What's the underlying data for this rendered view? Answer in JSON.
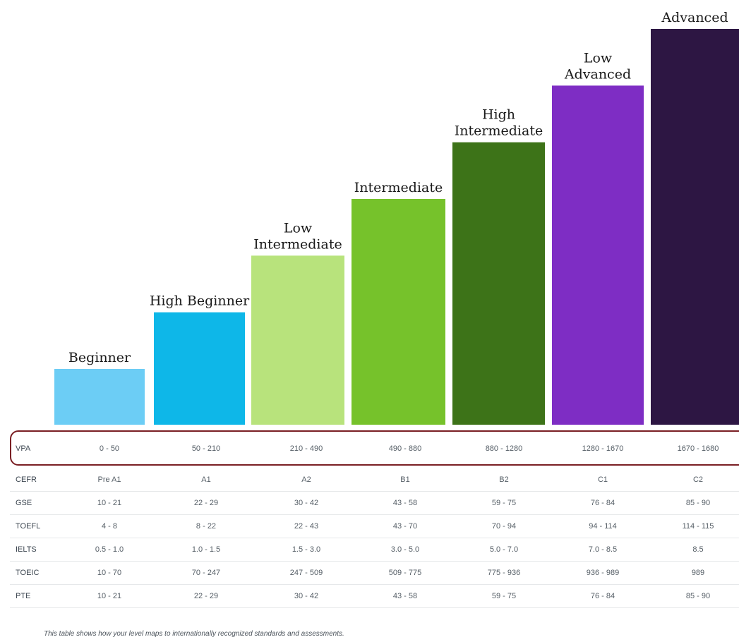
{
  "chart_data": {
    "type": "bar",
    "categories": [
      "Beginner",
      "High Beginner",
      "Low Intermediate",
      "Intermediate",
      "High Intermediate",
      "Low Advanced",
      "Advanced"
    ],
    "category_lines": [
      [
        "Beginner"
      ],
      [
        "High Beginner"
      ],
      [
        "Low",
        "Intermediate"
      ],
      [
        "Intermediate"
      ],
      [
        "High",
        "Intermediate"
      ],
      [
        "Low",
        "Advanced"
      ],
      [
        "Advanced"
      ]
    ],
    "values": [
      1,
      2,
      3,
      4,
      5,
      6,
      7
    ],
    "colors": [
      "#6ccdf5",
      "#0eb7e8",
      "#b8e37c",
      "#76c22b",
      "#3d7318",
      "#7e2dc4",
      "#2d1643"
    ],
    "ylim": [
      0,
      7
    ],
    "grid": false,
    "legend": "none"
  },
  "table": {
    "rows": [
      {
        "label": "VPA",
        "values": [
          "0 - 50",
          "50 - 210",
          "210 - 490",
          "490 - 880",
          "880 - 1280",
          "1280 - 1670",
          "1670 - 1680"
        ]
      },
      {
        "label": "CEFR",
        "values": [
          "Pre A1",
          "A1",
          "A2",
          "B1",
          "B2",
          "C1",
          "C2"
        ]
      },
      {
        "label": "GSE",
        "values": [
          "10 - 21",
          "22 - 29",
          "30 - 42",
          "43 - 58",
          "59 - 75",
          "76 - 84",
          "85 - 90"
        ]
      },
      {
        "label": "TOEFL",
        "values": [
          "4 - 8",
          "8 - 22",
          "22 - 43",
          "43 - 70",
          "70 - 94",
          "94 - 114",
          "114 - 115"
        ]
      },
      {
        "label": "IELTS",
        "values": [
          "0.5 - 1.0",
          "1.0 - 1.5",
          "1.5 - 3.0",
          "3.0 - 5.0",
          "5.0 - 7.0",
          "7.0 - 8.5",
          "8.5"
        ]
      },
      {
        "label": "TOEIC",
        "values": [
          "10 - 70",
          "70 - 247",
          "247 - 509",
          "509 - 775",
          "775 - 936",
          "936 - 989",
          "989"
        ]
      },
      {
        "label": "PTE",
        "values": [
          "10 - 21",
          "22 - 29",
          "30 - 42",
          "43 - 58",
          "59 - 75",
          "76 - 84",
          "85 - 90"
        ]
      }
    ]
  },
  "footnote": "This table shows how your level maps to internationally recognized standards and assessments."
}
